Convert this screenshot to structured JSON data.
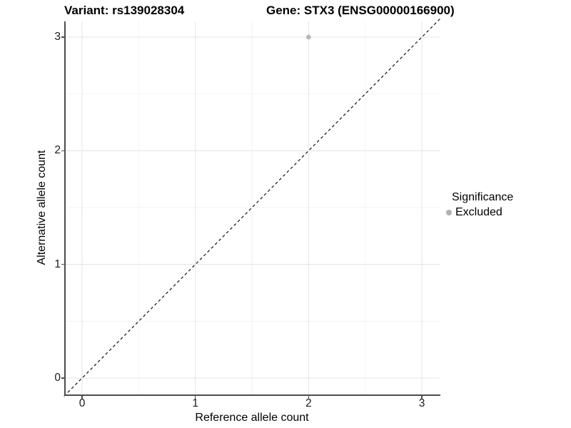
{
  "header": {
    "variant_title": "Variant: rs139028304",
    "gene_title": "Gene: STX3 (ENSG00000166900)"
  },
  "chart_data": {
    "type": "scatter",
    "title": "Variant: rs139028304   Gene: STX3 (ENSG00000166900)",
    "xlabel": "Reference allele count",
    "ylabel": "Alternative allele count",
    "xlim": [
      -0.15,
      3.16
    ],
    "ylim": [
      -0.15,
      3.16
    ],
    "x_ticks": [
      0,
      1,
      2,
      3
    ],
    "y_ticks": [
      0,
      1,
      2,
      3
    ],
    "x_minor_ticks": [
      0.5,
      1.5,
      2.5
    ],
    "y_minor_ticks": [
      0.5,
      1.5,
      2.5
    ],
    "grid": "major and minor gridlines on, white background",
    "identity_line": {
      "style": "dashed",
      "from": -0.16,
      "to": 3.17,
      "color": "#111111"
    },
    "series": [
      {
        "name": "Excluded",
        "color": "#b8b8b8",
        "points": [
          {
            "x": 2,
            "y": 3
          }
        ]
      }
    ],
    "legend": {
      "title": "Significance",
      "position": "right",
      "entries": [
        {
          "label": "Excluded",
          "color": "#b0b0b0"
        }
      ]
    }
  },
  "colors": {
    "background": "#ffffff",
    "grid_major": "#e6e6e6",
    "grid_minor": "#f2f2f2",
    "axis_line": "#4d4d4d",
    "point": "#b8b8b8",
    "dashed_line": "#111111",
    "text": "#000000"
  }
}
